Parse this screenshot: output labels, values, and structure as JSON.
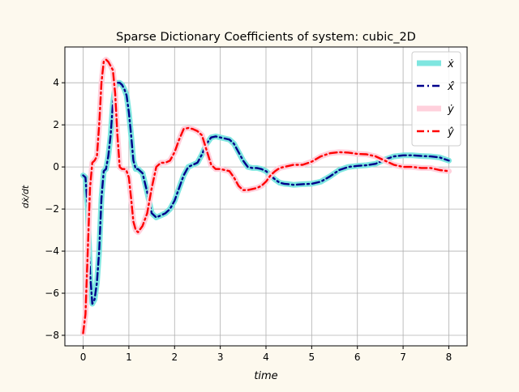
{
  "colors": {
    "background": "#fdf9ee",
    "grid": "#b0b0b0",
    "xdot_true": "#7fe6e0",
    "xdot_pred": "#00008b",
    "ydot_true": "#ffd0dc",
    "ydot_pred": "#ff0000"
  },
  "chart_data": {
    "type": "line",
    "title": "Sparse Dictionary Coefficients of system: cubic_2D",
    "xlabel": "time",
    "ylabel": "dẋ/dt",
    "xlim": [
      -0.4,
      8.4
    ],
    "ylim": [
      -8.5,
      5.7
    ],
    "xticks": [
      0,
      1,
      2,
      3,
      4,
      5,
      6,
      7,
      8
    ],
    "yticks": [
      -8,
      -6,
      -4,
      -2,
      0,
      2,
      4
    ],
    "grid": true,
    "legend_position": "top-right",
    "series": [
      {
        "name": "ẋ",
        "style": "solid-thick",
        "color": "#7fe6e0",
        "x": [
          0,
          0.05,
          0.1,
          0.15,
          0.2,
          0.25,
          0.3,
          0.35,
          0.4,
          0.45,
          0.5,
          0.55,
          0.6,
          0.65,
          0.7,
          0.75,
          0.8,
          0.85,
          0.9,
          0.95,
          1.0,
          1.05,
          1.1,
          1.15,
          1.2,
          1.3,
          1.4,
          1.5,
          1.6,
          1.7,
          1.8,
          1.9,
          2.0,
          2.1,
          2.2,
          2.3,
          2.4,
          2.5,
          2.6,
          2.7,
          2.8,
          2.9,
          3.0,
          3.1,
          3.2,
          3.3,
          3.4,
          3.5,
          3.6,
          3.7,
          3.8,
          3.9,
          4.0,
          4.1,
          4.2,
          4.3,
          4.4,
          4.5,
          4.6,
          4.8,
          5.0,
          5.2,
          5.4,
          5.6,
          5.8,
          6.0,
          6.2,
          6.4,
          6.6,
          6.8,
          7.0,
          7.2,
          7.4,
          7.6,
          7.8,
          8.0
        ],
        "y": [
          -0.4,
          -0.5,
          -2.0,
          -5.0,
          -6.5,
          -6.3,
          -5.5,
          -4.0,
          -1.5,
          -0.2,
          -0.1,
          0.5,
          1.5,
          3.0,
          3.8,
          4.0,
          4.0,
          3.9,
          3.7,
          3.4,
          2.6,
          1.5,
          0.3,
          -0.1,
          -0.1,
          -0.3,
          -1.2,
          -2.2,
          -2.4,
          -2.3,
          -2.2,
          -2.0,
          -1.6,
          -1.0,
          -0.4,
          0.0,
          0.1,
          0.2,
          0.6,
          1.1,
          1.4,
          1.45,
          1.4,
          1.35,
          1.3,
          1.1,
          0.7,
          0.3,
          0.0,
          -0.05,
          -0.05,
          -0.1,
          -0.2,
          -0.4,
          -0.6,
          -0.75,
          -0.8,
          -0.82,
          -0.85,
          -0.82,
          -0.8,
          -0.7,
          -0.45,
          -0.15,
          0.0,
          0.05,
          0.08,
          0.15,
          0.35,
          0.5,
          0.55,
          0.55,
          0.52,
          0.5,
          0.45,
          0.3
        ]
      },
      {
        "name": "ẋ̂",
        "style": "dashdot",
        "color": "#00008b",
        "x": [
          0,
          0.05,
          0.1,
          0.15,
          0.2,
          0.25,
          0.3,
          0.35,
          0.4,
          0.45,
          0.5,
          0.55,
          0.6,
          0.65,
          0.7,
          0.75,
          0.8,
          0.85,
          0.9,
          0.95,
          1.0,
          1.05,
          1.1,
          1.15,
          1.2,
          1.3,
          1.4,
          1.5,
          1.6,
          1.7,
          1.8,
          1.9,
          2.0,
          2.1,
          2.2,
          2.3,
          2.4,
          2.5,
          2.6,
          2.7,
          2.8,
          2.9,
          3.0,
          3.1,
          3.2,
          3.3,
          3.4,
          3.5,
          3.6,
          3.7,
          3.8,
          3.9,
          4.0,
          4.1,
          4.2,
          4.3,
          4.4,
          4.5,
          4.6,
          4.8,
          5.0,
          5.2,
          5.4,
          5.6,
          5.8,
          6.0,
          6.2,
          6.4,
          6.6,
          6.8,
          7.0,
          7.2,
          7.4,
          7.6,
          7.8,
          8.0
        ],
        "y": [
          -0.4,
          -0.5,
          -2.0,
          -5.0,
          -6.5,
          -6.3,
          -5.5,
          -4.0,
          -1.5,
          -0.2,
          -0.1,
          0.5,
          1.5,
          3.0,
          3.8,
          4.0,
          4.0,
          3.9,
          3.7,
          3.4,
          2.6,
          1.5,
          0.3,
          -0.1,
          -0.1,
          -0.3,
          -1.2,
          -2.2,
          -2.4,
          -2.3,
          -2.2,
          -2.0,
          -1.6,
          -1.0,
          -0.4,
          0.0,
          0.1,
          0.2,
          0.6,
          1.1,
          1.4,
          1.45,
          1.4,
          1.35,
          1.3,
          1.1,
          0.7,
          0.3,
          0.0,
          -0.05,
          -0.05,
          -0.1,
          -0.2,
          -0.4,
          -0.6,
          -0.75,
          -0.8,
          -0.82,
          -0.85,
          -0.82,
          -0.8,
          -0.7,
          -0.45,
          -0.15,
          0.0,
          0.05,
          0.08,
          0.15,
          0.35,
          0.5,
          0.55,
          0.55,
          0.52,
          0.5,
          0.45,
          0.3
        ]
      },
      {
        "name": "ẏ",
        "style": "solid-thick",
        "color": "#ffd0dc",
        "x": [
          0,
          0.05,
          0.1,
          0.15,
          0.2,
          0.25,
          0.3,
          0.35,
          0.4,
          0.45,
          0.5,
          0.55,
          0.6,
          0.65,
          0.7,
          0.75,
          0.8,
          0.85,
          0.9,
          0.95,
          1.0,
          1.05,
          1.1,
          1.15,
          1.2,
          1.3,
          1.4,
          1.5,
          1.6,
          1.7,
          1.8,
          1.9,
          2.0,
          2.1,
          2.2,
          2.3,
          2.4,
          2.5,
          2.6,
          2.7,
          2.8,
          2.9,
          3.0,
          3.1,
          3.2,
          3.3,
          3.4,
          3.5,
          3.6,
          3.7,
          3.8,
          3.9,
          4.0,
          4.1,
          4.2,
          4.3,
          4.4,
          4.5,
          4.6,
          4.8,
          5.0,
          5.2,
          5.4,
          5.6,
          5.8,
          6.0,
          6.2,
          6.4,
          6.6,
          6.8,
          7.0,
          7.2,
          7.4,
          7.6,
          7.8,
          8.0
        ],
        "y": [
          -7.9,
          -7.0,
          -4.0,
          -1.0,
          0.2,
          0.3,
          0.5,
          2.0,
          4.0,
          5.0,
          5.1,
          5.0,
          4.8,
          4.6,
          3.5,
          1.5,
          0.0,
          -0.1,
          -0.1,
          -0.2,
          -0.5,
          -1.5,
          -2.6,
          -3.0,
          -3.1,
          -2.8,
          -2.2,
          -1.0,
          0.0,
          0.2,
          0.2,
          0.3,
          0.7,
          1.3,
          1.8,
          1.85,
          1.8,
          1.7,
          1.5,
          0.8,
          0.1,
          -0.1,
          -0.1,
          -0.15,
          -0.2,
          -0.5,
          -0.9,
          -1.1,
          -1.1,
          -1.05,
          -1.0,
          -0.9,
          -0.7,
          -0.4,
          -0.2,
          -0.05,
          0.0,
          0.05,
          0.1,
          0.1,
          0.25,
          0.5,
          0.65,
          0.7,
          0.68,
          0.62,
          0.6,
          0.5,
          0.3,
          0.1,
          0.0,
          0.0,
          -0.05,
          -0.05,
          -0.15,
          -0.2
        ]
      },
      {
        "name": "ŷ",
        "style": "dashdot",
        "color": "#ff0000",
        "x": [
          0,
          0.05,
          0.1,
          0.15,
          0.2,
          0.25,
          0.3,
          0.35,
          0.4,
          0.45,
          0.5,
          0.55,
          0.6,
          0.65,
          0.7,
          0.75,
          0.8,
          0.85,
          0.9,
          0.95,
          1.0,
          1.05,
          1.1,
          1.15,
          1.2,
          1.3,
          1.4,
          1.5,
          1.6,
          1.7,
          1.8,
          1.9,
          2.0,
          2.1,
          2.2,
          2.3,
          2.4,
          2.5,
          2.6,
          2.7,
          2.8,
          2.9,
          3.0,
          3.1,
          3.2,
          3.3,
          3.4,
          3.5,
          3.6,
          3.7,
          3.8,
          3.9,
          4.0,
          4.1,
          4.2,
          4.3,
          4.4,
          4.5,
          4.6,
          4.8,
          5.0,
          5.2,
          5.4,
          5.6,
          5.8,
          6.0,
          6.2,
          6.4,
          6.6,
          6.8,
          7.0,
          7.2,
          7.4,
          7.6,
          7.8,
          8.0
        ],
        "y": [
          -7.9,
          -7.0,
          -4.0,
          -1.0,
          0.2,
          0.3,
          0.5,
          2.0,
          4.0,
          5.0,
          5.1,
          5.0,
          4.8,
          4.6,
          3.5,
          1.5,
          0.0,
          -0.1,
          -0.1,
          -0.2,
          -0.5,
          -1.5,
          -2.6,
          -3.0,
          -3.1,
          -2.8,
          -2.2,
          -1.0,
          0.0,
          0.2,
          0.2,
          0.3,
          0.7,
          1.3,
          1.8,
          1.85,
          1.8,
          1.7,
          1.5,
          0.8,
          0.1,
          -0.1,
          -0.1,
          -0.15,
          -0.2,
          -0.5,
          -0.9,
          -1.1,
          -1.1,
          -1.05,
          -1.0,
          -0.9,
          -0.7,
          -0.4,
          -0.2,
          -0.05,
          0.0,
          0.05,
          0.1,
          0.1,
          0.25,
          0.5,
          0.65,
          0.7,
          0.68,
          0.62,
          0.6,
          0.5,
          0.3,
          0.1,
          0.0,
          0.0,
          -0.05,
          -0.05,
          -0.15,
          -0.2
        ]
      }
    ]
  }
}
